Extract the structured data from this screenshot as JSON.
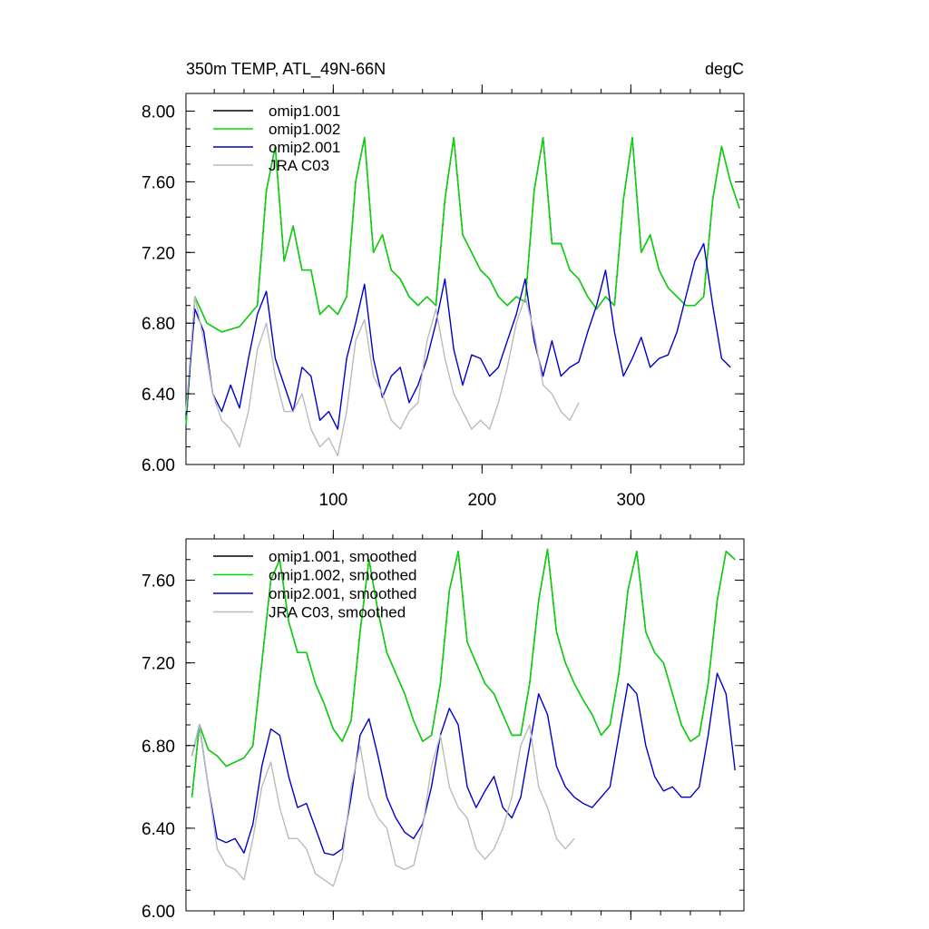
{
  "chart_data": [
    {
      "type": "line",
      "title": "350m TEMP, ATL_49N-66N",
      "units": "degC",
      "xlim": [
        1,
        376
      ],
      "ylim": [
        6.0,
        8.1
      ],
      "yticks": [
        6.0,
        6.4,
        6.8,
        7.2,
        7.6,
        8.0
      ],
      "ytick_labels": [
        "6.00",
        "6.40",
        "6.80",
        "7.20",
        "7.60",
        "8.00"
      ],
      "xticks": [
        100,
        200,
        300
      ],
      "xtick_labels": [
        "100",
        "200",
        "300"
      ],
      "legend": "top-left",
      "series": [
        {
          "name": "omip1.001",
          "color": "#000000",
          "x": [
            1,
            7,
            15,
            25,
            37,
            49,
            55,
            61,
            67,
            73,
            79,
            85,
            91,
            97,
            103,
            109,
            115,
            121,
            127,
            133,
            139,
            145,
            151,
            157,
            163,
            169,
            175,
            181,
            187,
            193,
            199,
            205,
            211,
            217,
            223,
            229,
            235,
            241,
            247,
            253,
            259,
            265,
            271,
            277,
            283,
            289,
            295,
            301,
            307,
            313,
            319,
            325,
            331,
            337,
            343,
            349,
            355,
            361,
            367,
            373
          ],
          "y": [
            6.22,
            6.95,
            6.8,
            6.75,
            6.78,
            6.9,
            7.55,
            7.8,
            7.15,
            7.35,
            7.1,
            7.1,
            6.85,
            6.9,
            6.85,
            6.95,
            7.6,
            7.85,
            7.2,
            7.3,
            7.1,
            7.05,
            6.95,
            6.9,
            6.95,
            6.9,
            7.5,
            7.85,
            7.3,
            7.2,
            7.1,
            7.05,
            6.95,
            6.9,
            6.95,
            6.92,
            7.55,
            7.85,
            7.25,
            7.25,
            7.1,
            7.05,
            6.95,
            6.88,
            6.95,
            6.9,
            7.5,
            7.85,
            7.2,
            7.3,
            7.1,
            7.0,
            6.95,
            6.9,
            6.9,
            6.95,
            7.5,
            7.8,
            7.6,
            7.45
          ]
        },
        {
          "name": "omip1.002",
          "color": "#00dd00",
          "x": [
            1,
            7,
            15,
            25,
            37,
            49,
            55,
            61,
            67,
            73,
            79,
            85,
            91,
            97,
            103,
            109,
            115,
            121,
            127,
            133,
            139,
            145,
            151,
            157,
            163,
            169,
            175,
            181,
            187,
            193,
            199,
            205,
            211,
            217,
            223,
            229,
            235,
            241,
            247,
            253,
            259,
            265,
            271,
            277,
            283,
            289,
            295,
            301,
            307,
            313,
            319,
            325,
            331,
            337,
            343,
            349,
            355,
            361,
            367,
            373
          ],
          "y": [
            6.22,
            6.95,
            6.8,
            6.75,
            6.78,
            6.9,
            7.55,
            7.8,
            7.15,
            7.35,
            7.1,
            7.1,
            6.85,
            6.9,
            6.85,
            6.95,
            7.6,
            7.85,
            7.2,
            7.3,
            7.1,
            7.05,
            6.95,
            6.9,
            6.95,
            6.9,
            7.5,
            7.85,
            7.3,
            7.2,
            7.1,
            7.05,
            6.95,
            6.9,
            6.95,
            6.92,
            7.55,
            7.85,
            7.25,
            7.25,
            7.1,
            7.05,
            6.95,
            6.88,
            6.95,
            6.9,
            7.5,
            7.85,
            7.2,
            7.3,
            7.1,
            7.0,
            6.95,
            6.9,
            6.9,
            6.95,
            7.5,
            7.8,
            7.6,
            7.45
          ]
        },
        {
          "name": "omip2.001",
          "color": "#0000cc",
          "x": [
            1,
            7,
            13,
            19,
            25,
            31,
            37,
            43,
            49,
            55,
            61,
            67,
            73,
            79,
            85,
            91,
            97,
            103,
            109,
            115,
            121,
            127,
            133,
            139,
            145,
            151,
            157,
            163,
            169,
            175,
            181,
            187,
            193,
            199,
            205,
            211,
            217,
            223,
            229,
            235,
            241,
            247,
            253,
            259,
            265,
            271,
            277,
            283,
            289,
            295,
            301,
            307,
            313,
            319,
            325,
            331,
            337,
            343,
            349,
            355,
            361,
            367
          ],
          "y": [
            6.28,
            6.88,
            6.75,
            6.4,
            6.3,
            6.45,
            6.32,
            6.6,
            6.85,
            6.98,
            6.6,
            6.45,
            6.3,
            6.55,
            6.5,
            6.25,
            6.3,
            6.2,
            6.6,
            6.8,
            7.02,
            6.6,
            6.38,
            6.5,
            6.55,
            6.35,
            6.45,
            6.6,
            6.8,
            7.05,
            6.65,
            6.45,
            6.62,
            6.6,
            6.5,
            6.55,
            6.7,
            6.85,
            7.05,
            6.7,
            6.5,
            6.7,
            6.5,
            6.55,
            6.58,
            6.75,
            6.9,
            7.1,
            6.75,
            6.5,
            6.6,
            6.72,
            6.55,
            6.6,
            6.62,
            6.75,
            6.95,
            7.15,
            7.25,
            6.9,
            6.6,
            6.55
          ]
        },
        {
          "name": "JRA C03",
          "color": "#bbbbbb",
          "x": [
            1,
            7,
            13,
            19,
            25,
            31,
            37,
            43,
            49,
            55,
            61,
            67,
            73,
            79,
            85,
            91,
            97,
            103,
            109,
            115,
            121,
            127,
            133,
            139,
            145,
            151,
            157,
            163,
            169,
            175,
            181,
            187,
            193,
            199,
            205,
            211,
            217,
            223,
            229,
            235,
            241,
            247,
            253,
            259,
            265
          ],
          "y": [
            6.3,
            6.95,
            6.7,
            6.4,
            6.25,
            6.2,
            6.1,
            6.3,
            6.65,
            6.8,
            6.5,
            6.3,
            6.3,
            6.4,
            6.2,
            6.1,
            6.15,
            6.05,
            6.3,
            6.7,
            6.82,
            6.5,
            6.4,
            6.25,
            6.2,
            6.3,
            6.35,
            6.7,
            6.88,
            6.6,
            6.4,
            6.3,
            6.2,
            6.25,
            6.2,
            6.35,
            6.55,
            6.8,
            6.95,
            6.75,
            6.45,
            6.4,
            6.3,
            6.25,
            6.35
          ]
        }
      ]
    },
    {
      "type": "line",
      "title": "",
      "ylim": [
        6.0,
        7.8
      ],
      "yticks": [
        6.0,
        6.4,
        6.8,
        7.2,
        7.6
      ],
      "ytick_labels": [
        "6.00",
        "6.40",
        "6.80",
        "7.20",
        "7.60"
      ],
      "xlim": [
        1,
        376
      ],
      "xticks": [
        100,
        200,
        300
      ],
      "legend": "top-left",
      "series": [
        {
          "name": "omip1.001, smoothed",
          "color": "#000000",
          "x": [
            5,
            10,
            16,
            22,
            28,
            34,
            40,
            46,
            52,
            58,
            64,
            70,
            76,
            82,
            88,
            94,
            100,
            106,
            112,
            118,
            124,
            130,
            136,
            142,
            148,
            154,
            160,
            166,
            172,
            178,
            184,
            190,
            196,
            202,
            208,
            214,
            220,
            226,
            232,
            238,
            244,
            250,
            256,
            262,
            268,
            274,
            280,
            286,
            292,
            298,
            304,
            310,
            316,
            322,
            328,
            334,
            340,
            346,
            352,
            358,
            364,
            370
          ],
          "y": [
            6.55,
            6.9,
            6.78,
            6.75,
            6.7,
            6.72,
            6.74,
            6.8,
            7.2,
            7.6,
            7.7,
            7.4,
            7.25,
            7.25,
            7.1,
            7.0,
            6.88,
            6.82,
            6.92,
            7.35,
            7.7,
            7.45,
            7.25,
            7.15,
            7.05,
            6.92,
            6.82,
            6.85,
            7.1,
            7.55,
            7.74,
            7.3,
            7.2,
            7.1,
            7.05,
            6.95,
            6.85,
            6.85,
            7.1,
            7.5,
            7.75,
            7.35,
            7.2,
            7.1,
            7.02,
            6.95,
            6.85,
            6.9,
            7.15,
            7.55,
            7.74,
            7.35,
            7.25,
            7.2,
            7.05,
            6.9,
            6.82,
            6.85,
            7.1,
            7.5,
            7.74,
            7.7
          ]
        },
        {
          "name": "omip1.002, smoothed",
          "color": "#00dd00",
          "x": [
            5,
            10,
            16,
            22,
            28,
            34,
            40,
            46,
            52,
            58,
            64,
            70,
            76,
            82,
            88,
            94,
            100,
            106,
            112,
            118,
            124,
            130,
            136,
            142,
            148,
            154,
            160,
            166,
            172,
            178,
            184,
            190,
            196,
            202,
            208,
            214,
            220,
            226,
            232,
            238,
            244,
            250,
            256,
            262,
            268,
            274,
            280,
            286,
            292,
            298,
            304,
            310,
            316,
            322,
            328,
            334,
            340,
            346,
            352,
            358,
            364,
            370
          ],
          "y": [
            6.55,
            6.9,
            6.78,
            6.75,
            6.7,
            6.72,
            6.74,
            6.8,
            7.2,
            7.6,
            7.7,
            7.4,
            7.25,
            7.25,
            7.1,
            7.0,
            6.88,
            6.82,
            6.92,
            7.35,
            7.7,
            7.45,
            7.25,
            7.15,
            7.05,
            6.92,
            6.82,
            6.85,
            7.1,
            7.55,
            7.74,
            7.3,
            7.2,
            7.1,
            7.05,
            6.95,
            6.85,
            6.85,
            7.1,
            7.5,
            7.75,
            7.35,
            7.2,
            7.1,
            7.02,
            6.95,
            6.85,
            6.9,
            7.15,
            7.55,
            7.74,
            7.35,
            7.25,
            7.2,
            7.05,
            6.9,
            6.82,
            6.85,
            7.1,
            7.5,
            7.74,
            7.7
          ]
        },
        {
          "name": "omip2.001, smoothed",
          "color": "#0000cc",
          "x": [
            5,
            10,
            16,
            22,
            28,
            34,
            40,
            46,
            52,
            58,
            64,
            70,
            76,
            82,
            88,
            94,
            100,
            106,
            112,
            118,
            124,
            130,
            136,
            142,
            148,
            154,
            160,
            166,
            172,
            178,
            184,
            190,
            196,
            202,
            208,
            214,
            220,
            226,
            232,
            238,
            244,
            250,
            256,
            262,
            268,
            274,
            280,
            286,
            292,
            298,
            304,
            310,
            316,
            322,
            328,
            334,
            340,
            346,
            352,
            358,
            364,
            370
          ],
          "y": [
            6.75,
            6.9,
            6.6,
            6.35,
            6.33,
            6.35,
            6.28,
            6.42,
            6.7,
            6.88,
            6.85,
            6.65,
            6.5,
            6.52,
            6.4,
            6.28,
            6.27,
            6.3,
            6.55,
            6.85,
            6.93,
            6.75,
            6.55,
            6.45,
            6.38,
            6.35,
            6.42,
            6.6,
            6.85,
            6.98,
            6.9,
            6.6,
            6.5,
            6.58,
            6.65,
            6.5,
            6.45,
            6.55,
            6.8,
            7.05,
            6.95,
            6.7,
            6.6,
            6.55,
            6.52,
            6.5,
            6.55,
            6.6,
            6.85,
            7.1,
            7.05,
            6.8,
            6.65,
            6.58,
            6.6,
            6.55,
            6.55,
            6.6,
            6.85,
            7.15,
            7.05,
            6.68
          ]
        },
        {
          "name": "JRA C03, smoothed",
          "color": "#bbbbbb",
          "x": [
            5,
            10,
            16,
            22,
            28,
            34,
            40,
            46,
            52,
            58,
            64,
            70,
            76,
            82,
            88,
            94,
            100,
            106,
            112,
            118,
            124,
            130,
            136,
            142,
            148,
            154,
            160,
            166,
            172,
            178,
            184,
            190,
            196,
            202,
            208,
            214,
            220,
            226,
            232,
            238,
            244,
            250,
            256,
            262
          ],
          "y": [
            6.75,
            6.9,
            6.6,
            6.3,
            6.22,
            6.2,
            6.15,
            6.35,
            6.6,
            6.72,
            6.5,
            6.35,
            6.35,
            6.3,
            6.18,
            6.15,
            6.12,
            6.25,
            6.6,
            6.8,
            6.55,
            6.45,
            6.4,
            6.22,
            6.2,
            6.22,
            6.4,
            6.7,
            6.85,
            6.6,
            6.5,
            6.45,
            6.3,
            6.25,
            6.3,
            6.4,
            6.55,
            6.8,
            6.9,
            6.6,
            6.5,
            6.35,
            6.3,
            6.35
          ]
        }
      ]
    }
  ]
}
